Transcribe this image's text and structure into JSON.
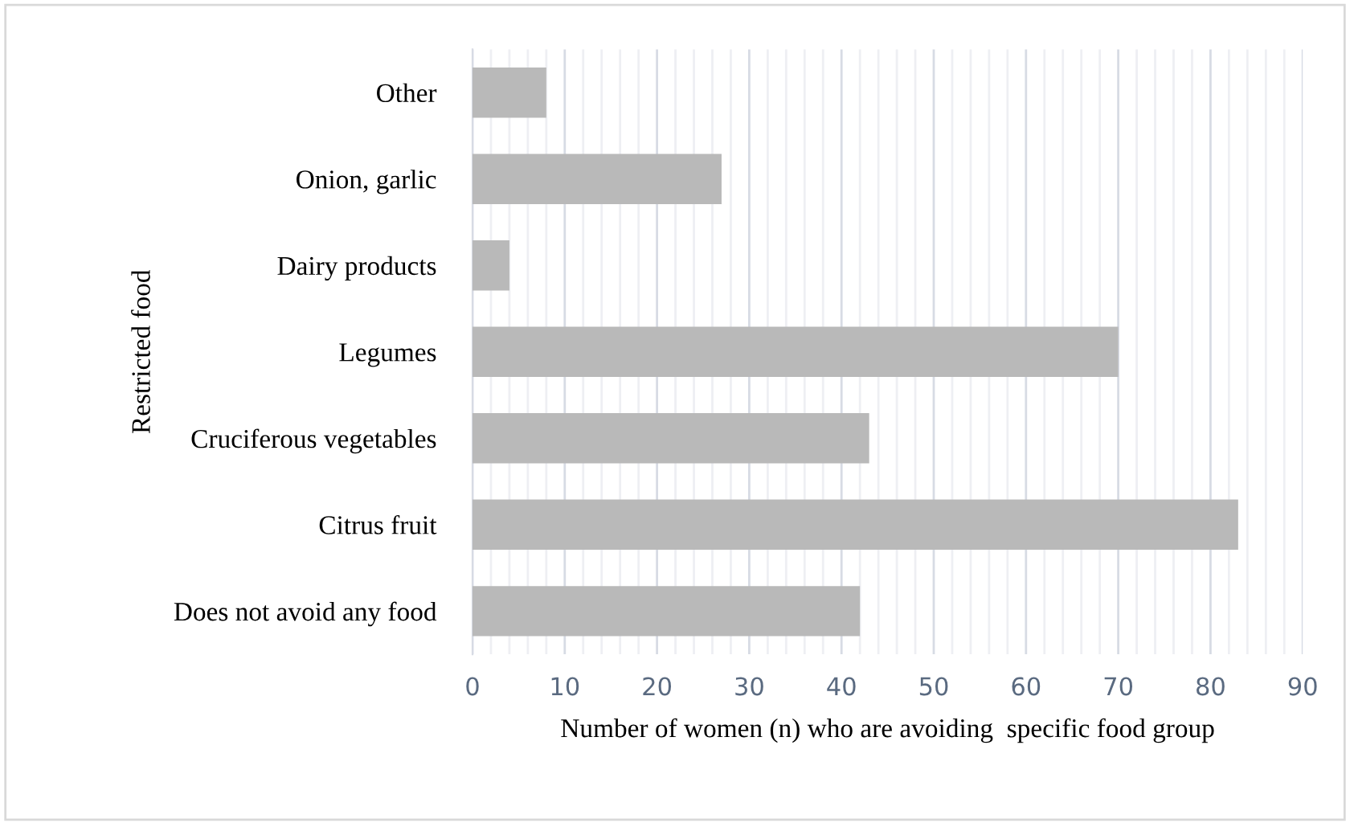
{
  "chart_data": {
    "type": "bar",
    "orientation": "horizontal",
    "categories": [
      "Other",
      "Onion, garlic",
      "Dairy products",
      "Legumes",
      "Cruciferous vegetables",
      "Citrus fruit",
      "Does not avoid any food"
    ],
    "values": [
      8,
      27,
      4,
      70,
      43,
      83,
      42
    ],
    "color": "#b9b9b9",
    "xlabel": "Number of women (n) who are avoiding  specific food group",
    "ylabel": "Restricted food",
    "xlim": [
      0,
      90
    ],
    "xticks": [
      0,
      {
        "value": 2,
        "label": null
      },
      {
        "value": 4,
        "label": null
      },
      {
        "value": 6,
        "label": null
      },
      {
        "value": 8,
        "label": null
      },
      10,
      {
        "value": 12,
        "label": null
      },
      {
        "value": 14,
        "label": null
      },
      {
        "value": 16,
        "label": null
      },
      {
        "value": 18,
        "label": null
      },
      20,
      {
        "value": 22,
        "label": null
      },
      {
        "value": 24,
        "label": null
      },
      {
        "value": 26,
        "label": null
      },
      {
        "value": 28,
        "label": null
      },
      30,
      {
        "value": 32,
        "label": null
      },
      {
        "value": 34,
        "label": null
      },
      {
        "value": 36,
        "label": null
      },
      {
        "value": 38,
        "label": null
      },
      40,
      {
        "value": 42,
        "label": null
      },
      {
        "value": 44,
        "label": null
      },
      {
        "value": 46,
        "label": null
      },
      {
        "value": 48,
        "label": null
      },
      50,
      {
        "value": 52,
        "label": null
      },
      {
        "value": 54,
        "label": null
      },
      {
        "value": 56,
        "label": null
      },
      {
        "value": 58,
        "label": null
      },
      60,
      {
        "value": 62,
        "label": null
      },
      {
        "value": 64,
        "label": null
      },
      {
        "value": 66,
        "label": null
      },
      {
        "value": 68,
        "label": null
      },
      70,
      {
        "value": 72,
        "label": null
      },
      {
        "value": 74,
        "label": null
      },
      {
        "value": 76,
        "label": null
      },
      {
        "value": 78,
        "label": null
      },
      80,
      {
        "value": 82,
        "label": null
      },
      {
        "value": 84,
        "label": null
      },
      {
        "value": 86,
        "label": null
      },
      {
        "value": 88,
        "label": null
      },
      90
    ],
    "grid": "x",
    "legend": false
  }
}
